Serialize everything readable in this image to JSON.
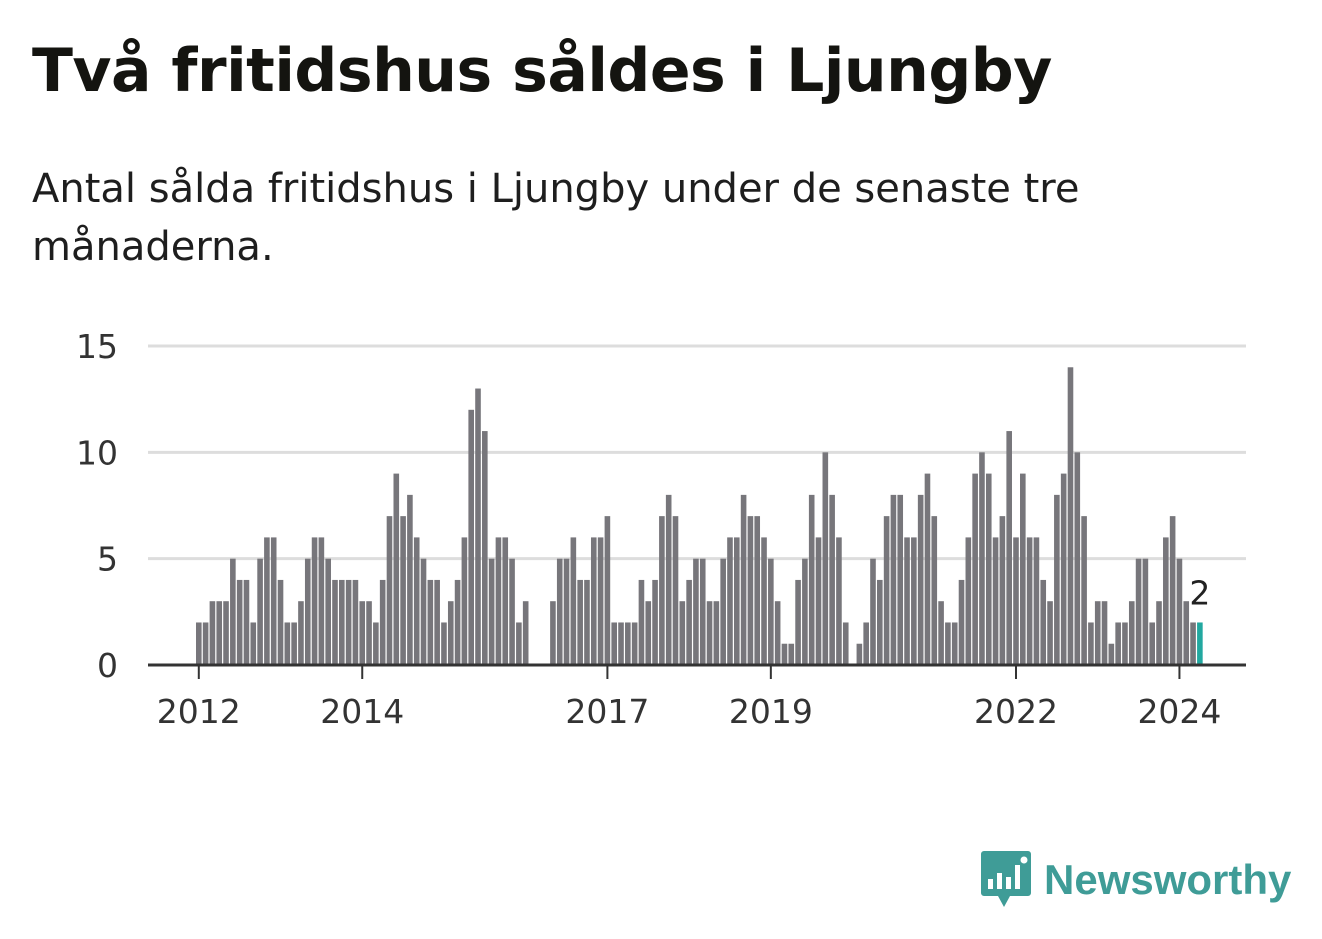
{
  "title": "Två fritidshus såldes i Ljungby",
  "subtitle": "Antal sålda fritidshus i Ljungby under de senaste tre månaderna.",
  "brand": {
    "name": "Newsworthy",
    "icon": "newsworthy-logo-icon",
    "color": "#3f9c97"
  },
  "colors": {
    "bar": "#77767b",
    "highlight": "#22a8a0",
    "grid": "#dddddd",
    "axis": "#333333"
  },
  "chart_data": {
    "type": "bar",
    "ylim": [
      0,
      15
    ],
    "yticks": [
      0,
      5,
      10,
      15
    ],
    "xticks": [
      "2012",
      "2014",
      "2017",
      "2019",
      "2022",
      "2024"
    ],
    "grid": true,
    "start": "2012-01",
    "values": [
      2,
      2,
      3,
      3,
      3,
      5,
      4,
      4,
      2,
      5,
      6,
      6,
      4,
      2,
      2,
      3,
      5,
      6,
      6,
      5,
      4,
      4,
      4,
      4,
      3,
      3,
      2,
      4,
      7,
      9,
      7,
      8,
      6,
      5,
      4,
      4,
      2,
      3,
      4,
      6,
      12,
      13,
      11,
      5,
      6,
      6,
      5,
      2,
      3,
      0,
      0,
      0,
      3,
      5,
      5,
      6,
      4,
      4,
      6,
      6,
      7,
      2,
      2,
      2,
      2,
      4,
      3,
      4,
      7,
      8,
      7,
      3,
      4,
      5,
      5,
      3,
      3,
      5,
      6,
      6,
      8,
      7,
      7,
      6,
      5,
      3,
      1,
      1,
      4,
      5,
      8,
      6,
      10,
      8,
      6,
      2,
      0,
      1,
      2,
      5,
      4,
      7,
      8,
      8,
      6,
      6,
      8,
      9,
      7,
      3,
      2,
      2,
      4,
      6,
      9,
      10,
      9,
      6,
      7,
      11,
      6,
      9,
      6,
      6,
      4,
      3,
      8,
      9,
      14,
      10,
      7,
      2,
      3,
      3,
      1,
      2,
      2,
      3,
      5,
      5,
      2,
      3,
      6,
      7,
      5,
      3,
      2,
      2
    ],
    "highlight_value": 2,
    "value_label": "2"
  }
}
